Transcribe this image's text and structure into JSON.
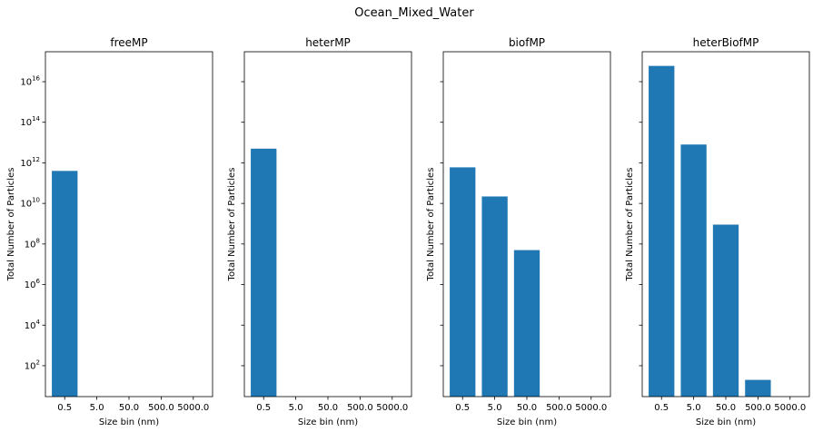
{
  "suptitle": "Ocean_Mixed_Water",
  "chart_data": [
    {
      "type": "bar",
      "title": "freeMP",
      "categories": [
        "0.5",
        "5.0",
        "50.0",
        "500.0",
        "5000.0"
      ],
      "values": [
        400000000000.0,
        0,
        0,
        0,
        0
      ],
      "xlabel": "Size bin (nm)",
      "ylabel": "Total Number of Particles",
      "yscale": "log",
      "ylim": [
        3,
        3e+17
      ],
      "yticks": [
        {
          "exp": "2",
          "v": 100
        },
        {
          "exp": "4",
          "v": 10000.0
        },
        {
          "exp": "6",
          "v": 1000000.0
        },
        {
          "exp": "8",
          "v": 100000000.0
        },
        {
          "exp": "10",
          "v": 10000000000.0
        },
        {
          "exp": "12",
          "v": 1000000000000.0
        },
        {
          "exp": "14",
          "v": 100000000000000.0
        },
        {
          "exp": "16",
          "v": 1e+16
        }
      ],
      "color": "#1f77b4"
    },
    {
      "type": "bar",
      "title": "heterMP",
      "categories": [
        "0.5",
        "5.0",
        "50.0",
        "500.0",
        "5000.0"
      ],
      "values": [
        5000000000000.0,
        0,
        0,
        0,
        0
      ],
      "xlabel": "Size bin (nm)",
      "ylabel": "Total Number of Particles",
      "yscale": "log",
      "ylim": [
        3,
        3e+17
      ],
      "color": "#1f77b4"
    },
    {
      "type": "bar",
      "title": "biofMP",
      "categories": [
        "0.5",
        "5.0",
        "50.0",
        "500.0",
        "5000.0"
      ],
      "values": [
        600000000000.0,
        22000000000.0,
        50000000.0,
        0,
        0
      ],
      "xlabel": "Size bin (nm)",
      "ylabel": "Total Number of Particles",
      "yscale": "log",
      "ylim": [
        3,
        3e+17
      ],
      "color": "#1f77b4"
    },
    {
      "type": "bar",
      "title": "heterBiofMP",
      "categories": [
        "0.5",
        "5.0",
        "50.0",
        "500.0",
        "5000.0"
      ],
      "values": [
        6e+16,
        8000000000000.0,
        900000000.0,
        20,
        0
      ],
      "xlabel": "Size bin (nm)",
      "ylabel": "Total Number of Particles",
      "yscale": "log",
      "ylim": [
        3,
        3e+17
      ],
      "color": "#1f77b4"
    }
  ]
}
